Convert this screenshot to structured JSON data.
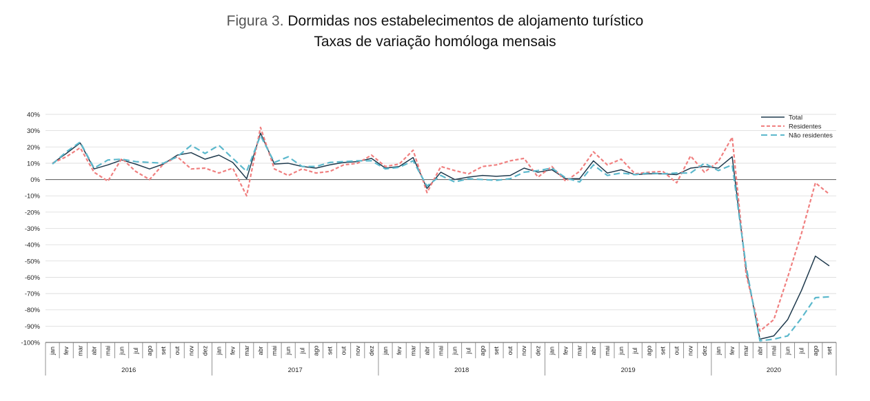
{
  "header": {
    "figure_label": "Figura 3.",
    "title": "Dormidas nos estabelecimentos de alojamento turístico",
    "subtitle": "Taxas de variação homóloga mensais"
  },
  "chart_data": {
    "type": "line",
    "title": "Dormidas nos estabelecimentos de alojamento turístico",
    "subtitle": "Taxas de variação homóloga mensais",
    "xlabel": "",
    "ylabel": "",
    "ylim": [
      -100,
      40
    ],
    "yticks": [
      40,
      30,
      20,
      10,
      0,
      -10,
      -20,
      -30,
      -40,
      -50,
      -60,
      -70,
      -80,
      -90,
      -100
    ],
    "ytick_labels": [
      "40%",
      "30%",
      "20%",
      "10%",
      "0%",
      "-10%",
      "-20%",
      "-30%",
      "-40%",
      "-50%",
      "-60%",
      "-70%",
      "-80%",
      "-90%",
      "-100%"
    ],
    "grid": true,
    "legend_position": "top-right",
    "years": [
      "2016",
      "2017",
      "2018",
      "2019",
      "2020"
    ],
    "months": [
      "jan",
      "fev",
      "mar",
      "abr",
      "mai",
      "jun",
      "jul",
      "ago",
      "set",
      "out",
      "nov",
      "dez"
    ],
    "categories": [
      "jan",
      "fev",
      "mar",
      "abr",
      "mai",
      "jun",
      "jul",
      "ago",
      "set",
      "out",
      "nov",
      "dez",
      "jan",
      "fev",
      "mar",
      "abr",
      "mai",
      "jun",
      "jul",
      "ago",
      "set",
      "out",
      "nov",
      "dez",
      "jan",
      "fev",
      "mar",
      "abr",
      "mai",
      "jun",
      "jul",
      "ago",
      "set",
      "out",
      "nov",
      "dez",
      "jan",
      "fev",
      "mar",
      "abr",
      "mai",
      "jun",
      "jul",
      "ago",
      "set",
      "out",
      "nov",
      "dez",
      "jan",
      "fev",
      "mar",
      "abr",
      "mai",
      "jun",
      "jul",
      "ago",
      "set"
    ],
    "series": [
      {
        "name": "Total",
        "color": "#1f3a4d",
        "dash": "solid",
        "values": [
          10,
          16,
          22.5,
          6.5,
          9,
          12,
          9.5,
          6.5,
          9.5,
          15,
          16.5,
          12.5,
          15,
          10.5,
          0.5,
          28.5,
          9.5,
          10,
          8,
          7,
          9,
          10.5,
          11,
          13,
          7,
          8,
          13.5,
          -5.5,
          4.5,
          0,
          1.5,
          2.5,
          2,
          2.5,
          7,
          4.5,
          6,
          0.5,
          0.5,
          11.5,
          4,
          6,
          3,
          3.5,
          3.5,
          3,
          7,
          8,
          7,
          14,
          -55,
          -98,
          -96,
          -86,
          -68,
          -47,
          -53
        ]
      },
      {
        "name": "Residentes",
        "color": "#f07f7f",
        "dash": "dotted",
        "values": [
          10,
          14,
          19.5,
          4.5,
          -1,
          13,
          5,
          0,
          9.5,
          14,
          6.5,
          7,
          4,
          7,
          -10,
          32,
          6.5,
          2.5,
          6.5,
          4,
          5,
          9,
          10,
          15,
          8,
          9.5,
          18,
          -8,
          8,
          5.5,
          3.5,
          8,
          9,
          11.5,
          13,
          1.5,
          8,
          -1,
          5,
          17,
          9,
          12.5,
          3.5,
          4.5,
          5,
          -2,
          14.5,
          4.5,
          11,
          26,
          -58,
          -93,
          -86,
          -60,
          -33,
          -2,
          -9
        ]
      },
      {
        "name": "Não residentes",
        "color": "#5bb8cc",
        "dash": "dashed",
        "values": [
          9.5,
          17,
          23,
          7,
          12,
          12.5,
          11,
          10.5,
          10,
          14,
          21,
          16,
          21,
          13,
          5,
          27,
          10.5,
          14,
          8,
          8,
          10.5,
          11,
          11.5,
          11.5,
          6.5,
          7.5,
          11.5,
          -4,
          2.5,
          -1.5,
          0.5,
          0,
          -0.5,
          0.5,
          4.5,
          5.5,
          7,
          1,
          -1.5,
          9,
          2.5,
          4,
          3,
          4,
          3.5,
          4,
          4,
          10,
          5.5,
          9,
          -53,
          -99,
          -98,
          -96,
          -85,
          -72.5,
          -72
        ]
      }
    ]
  }
}
